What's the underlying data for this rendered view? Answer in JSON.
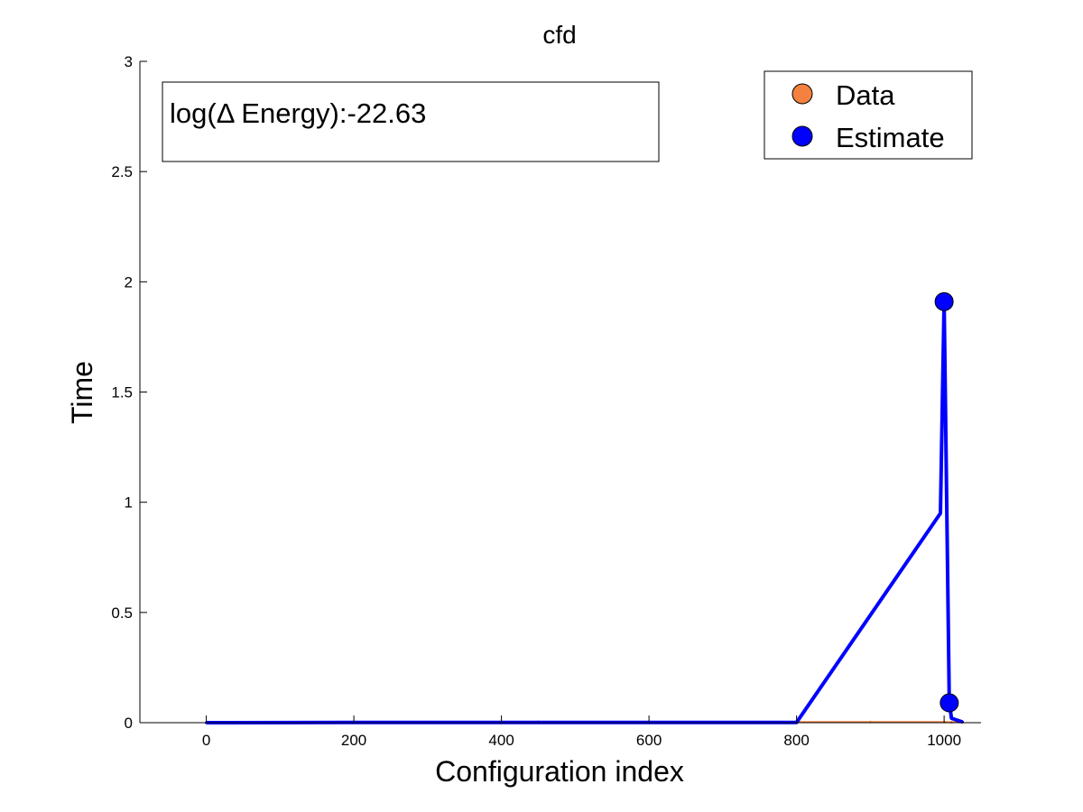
{
  "chart_data": {
    "type": "scatter",
    "title": "cfd",
    "xlabel": "Configuration index",
    "ylabel": "Time",
    "xlim": [
      -90,
      1050
    ],
    "ylim": [
      0,
      3
    ],
    "x_ticks": [
      0,
      200,
      400,
      600,
      800,
      1000
    ],
    "y_ticks": [
      0,
      0.5,
      1,
      1.5,
      2,
      2.5,
      3
    ],
    "y_tick_labels": [
      "0",
      "0.5",
      "1",
      "1.5",
      "2",
      "2.5",
      "3"
    ],
    "grid": false,
    "legend": {
      "placement": "top-right",
      "entries": [
        "Data",
        "Estimate"
      ]
    },
    "annotation": "log(Δ Energy):-22.63",
    "series": [
      {
        "name": "Data",
        "color": "#f4813f",
        "marker": "circle",
        "points": [
          [
            0,
            0
          ],
          [
            150,
            0.002
          ],
          [
            300,
            0.003
          ],
          [
            450,
            0.004
          ],
          [
            600,
            0.004
          ],
          [
            750,
            0.003
          ],
          [
            900,
            0.003
          ],
          [
            1000,
            0.003
          ],
          [
            1010,
            0.002
          ],
          [
            1025,
            0.002
          ]
        ]
      },
      {
        "name": "Estimate",
        "color": "#0000ff",
        "marker": "circle",
        "points": [
          [
            0,
            0
          ],
          [
            200,
            0.001
          ],
          [
            400,
            0.001
          ],
          [
            600,
            0.001
          ],
          [
            800,
            0.001
          ],
          [
            995,
            0.95
          ],
          [
            1000,
            1.91
          ],
          [
            1007,
            0.09
          ],
          [
            1010,
            0.02
          ],
          [
            1025,
            0.003
          ]
        ],
        "highlighted_points": [
          [
            1000,
            1.91
          ],
          [
            1007,
            0.09
          ]
        ]
      }
    ]
  }
}
